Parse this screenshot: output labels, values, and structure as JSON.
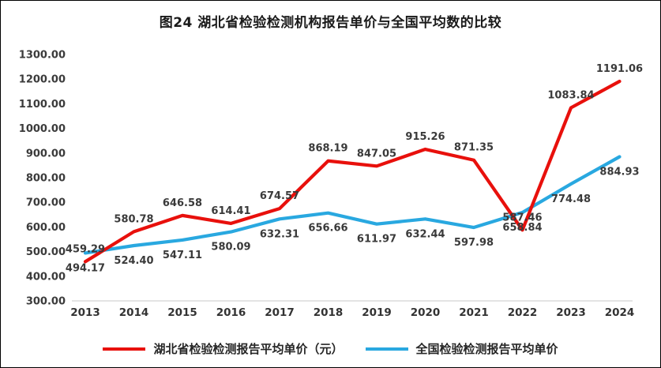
{
  "title": "图24 湖北省检验检测机构报告单价与全国平均数的比较",
  "chart_data": {
    "type": "line",
    "x": [
      "2013",
      "2014",
      "2015",
      "2016",
      "2017",
      "2018",
      "2019",
      "2020",
      "2021",
      "2022",
      "2023",
      "2024"
    ],
    "series": [
      {
        "name": "湖北省检验检测报告平均单价（元）",
        "color": "#e8100c",
        "label_position": "above",
        "values": [
          459.29,
          580.78,
          646.58,
          614.41,
          674.57,
          868.19,
          847.05,
          915.26,
          871.35,
          587.46,
          1083.84,
          1191.06
        ]
      },
      {
        "name": "全国检验检测报告平均单价",
        "color": "#29a8e0",
        "label_position": "below",
        "values": [
          494.17,
          524.4,
          547.11,
          580.09,
          632.31,
          656.66,
          611.97,
          632.44,
          597.98,
          658.84,
          774.48,
          884.93
        ]
      }
    ],
    "ylim": [
      300,
      1300
    ],
    "ytick_step": 100,
    "ytick_format": "2dp",
    "grid": false,
    "legend_position": "bottom",
    "xlabel": "",
    "ylabel": ""
  }
}
